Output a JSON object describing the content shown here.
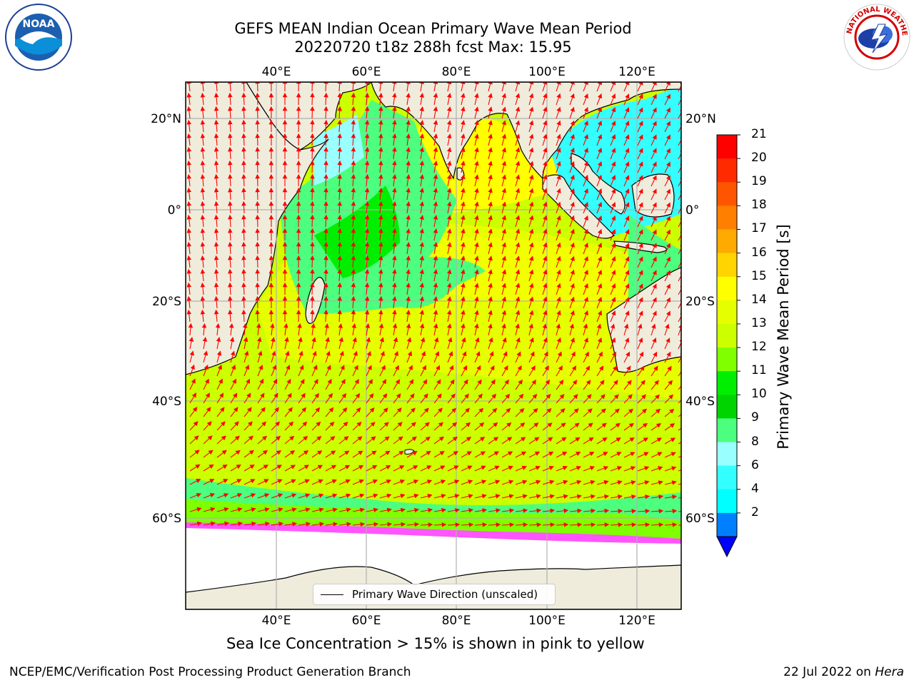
{
  "header": {
    "title": "GEFS MEAN Indian Ocean Primary Wave Mean Period",
    "subtitle": "20220720 t18z 288h fcst   Max: 15.95"
  },
  "logos": {
    "left": {
      "text": "NOAA",
      "ring_text": "NATIONAL OCEANIC AND ATMOSPHERIC ADMINISTRATION · U.S. DEPARTMENT OF COMMERCE",
      "icon": "noaa-logo"
    },
    "right": {
      "ring_text": "NATIONAL WEATHER SERVICE",
      "icon": "nws-logo"
    }
  },
  "map": {
    "lon_labels": [
      "40°E",
      "60°E",
      "80°E",
      "100°E",
      "120°E"
    ],
    "lat_labels_left": [
      "20°N",
      "0°",
      "20°S",
      "40°S",
      "60°S"
    ],
    "lat_labels_right": [
      "20°N",
      "0°",
      "20°S",
      "40°S",
      "60°S"
    ],
    "legend_label": "Primary Wave Direction (unscaled)",
    "colors": {
      "land": "#efecdc",
      "ocean_period_12_13": "#ccff00",
      "ocean_period_13_14": "#e6ff00",
      "ocean_period_14_15": "#ffff00",
      "ocean_period_9_10": "#4cff7f",
      "ocean_period_10_11": "#00ee00",
      "ocean_period_8_9": "#99ffff",
      "ocean_period_6_8": "#33ffff",
      "sea_ice": "#ff55ff",
      "arrows": "#ff0000"
    }
  },
  "colorbar": {
    "label": "Primary Wave Mean Period [s]",
    "ticks": [
      "21",
      "20",
      "19",
      "18",
      "17",
      "16",
      "15",
      "14",
      "13",
      "12",
      "11",
      "10",
      "9",
      "8",
      "6",
      "4",
      "2"
    ],
    "colors": [
      "#ff0000",
      "#ff2a00",
      "#ff5500",
      "#ff8000",
      "#ffaa00",
      "#ffd400",
      "#ffff00",
      "#e6ff00",
      "#ccff00",
      "#80ff00",
      "#00ee00",
      "#00d400",
      "#4cff7f",
      "#99ffff",
      "#33ffff",
      "#00ffff",
      "#0080ff"
    ],
    "extend_color": "#0000ff"
  },
  "caption": "Sea Ice Concentration > 15% is shown in pink to yellow",
  "footer": {
    "left": "NCEP/EMC/Verification Post Processing Product Generation Branch",
    "date": "22 Jul 2022 on ",
    "machine": "Hera"
  }
}
